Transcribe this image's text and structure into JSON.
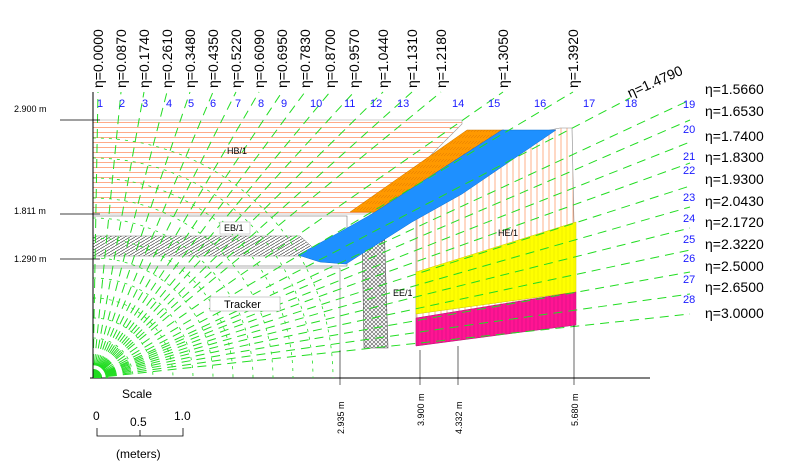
{
  "eta_top": [
    "η=0.0000",
    "η=0.0870",
    "η=0.1740",
    "η=0.2610",
    "η=0.3480",
    "η=0.4350",
    "η=0.5220",
    "η=0.6090",
    "η=0.6950",
    "η=0.7830",
    "η=0.8700",
    "η=0.9570",
    "η=1.0440",
    "η=1.1310",
    "η=1.2180",
    "η=1.3050",
    "η=1.3920"
  ],
  "eta_diag": "η=1.4790",
  "eta_right": [
    "η=1.5660",
    "η=1.6530",
    "η=1.7400",
    "η=1.8300",
    "η=1.9300",
    "η=2.0430",
    "η=2.1720",
    "η=2.3220",
    "η=2.5000",
    "η=2.6500",
    "η=3.0000"
  ],
  "towers_top": [
    "1",
    "2",
    "3",
    "4",
    "5",
    "6",
    "7",
    "8",
    "9",
    "10",
    "11",
    "12",
    "13",
    "14",
    "15",
    "16",
    "17",
    "18"
  ],
  "towers_right": [
    "19",
    "20",
    "21",
    "22",
    "23",
    "24",
    "25",
    "26",
    "27",
    "28"
  ],
  "radial_dims": [
    "2.900 m",
    "1.811 m",
    "1.290 m"
  ],
  "z_dims": [
    "2.935 m",
    "3.900 m",
    "4.332 m",
    "5.680 m"
  ],
  "regions": {
    "hb": "HB/1",
    "eb": "EB/1",
    "he": "HE/1",
    "ee": "EE/1",
    "tracker": "Tracker"
  },
  "scale": {
    "title": "Scale",
    "ticks": [
      "0",
      "0.5",
      "1.0"
    ],
    "unit": "(meters)"
  },
  "colors": {
    "eta_lines": "#22dd22",
    "hb_stripes": "#ffaa88",
    "orange": "#ff9900",
    "blue": "#1e90ff",
    "yellow": "#ffff00",
    "magenta": "#ff1493",
    "tower_numbers": "#1a1aff"
  }
}
